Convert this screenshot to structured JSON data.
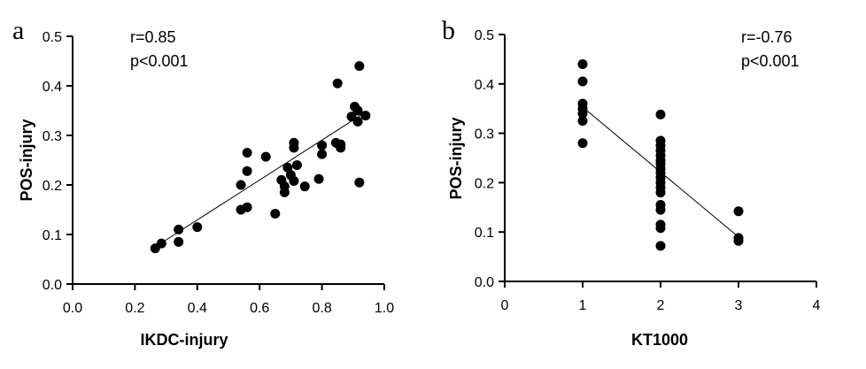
{
  "chart_data": [
    {
      "type": "scatter",
      "panel_label": "a",
      "xlabel": "IKDC-injury",
      "ylabel": "POS-injury",
      "xlim": [
        0.0,
        1.0
      ],
      "ylim": [
        0.0,
        0.5
      ],
      "xticks": [
        0.0,
        0.2,
        0.4,
        0.6,
        0.8,
        1.0
      ],
      "xtick_labels": [
        "0.0",
        "0.2",
        "0.4",
        "0.6",
        "0.8",
        "1.0"
      ],
      "yticks": [
        0.0,
        0.1,
        0.2,
        0.3,
        0.4,
        0.5
      ],
      "ytick_labels": [
        "0.0",
        "0.1",
        "0.2",
        "0.3",
        "0.4",
        "0.5"
      ],
      "annotations": [
        "r=0.85",
        "p<0.001"
      ],
      "annotation_position": "top-left",
      "grid": false,
      "points": [
        [
          0.265,
          0.072
        ],
        [
          0.285,
          0.082
        ],
        [
          0.34,
          0.085
        ],
        [
          0.34,
          0.11
        ],
        [
          0.4,
          0.115
        ],
        [
          0.54,
          0.15
        ],
        [
          0.56,
          0.155
        ],
        [
          0.54,
          0.2
        ],
        [
          0.56,
          0.228
        ],
        [
          0.56,
          0.265
        ],
        [
          0.62,
          0.257
        ],
        [
          0.65,
          0.142
        ],
        [
          0.67,
          0.21
        ],
        [
          0.68,
          0.185
        ],
        [
          0.68,
          0.197
        ],
        [
          0.69,
          0.235
        ],
        [
          0.7,
          0.22
        ],
        [
          0.71,
          0.208
        ],
        [
          0.71,
          0.275
        ],
        [
          0.71,
          0.285
        ],
        [
          0.72,
          0.24
        ],
        [
          0.745,
          0.197
        ],
        [
          0.79,
          0.212
        ],
        [
          0.8,
          0.262
        ],
        [
          0.8,
          0.28
        ],
        [
          0.845,
          0.285
        ],
        [
          0.85,
          0.405
        ],
        [
          0.86,
          0.275
        ],
        [
          0.86,
          0.282
        ],
        [
          0.895,
          0.338
        ],
        [
          0.905,
          0.358
        ],
        [
          0.915,
          0.328
        ],
        [
          0.915,
          0.35
        ],
        [
          0.92,
          0.44
        ],
        [
          0.92,
          0.205
        ],
        [
          0.94,
          0.34
        ]
      ],
      "fit_line": [
        [
          0.265,
          0.075
        ],
        [
          0.935,
          0.345
        ]
      ]
    },
    {
      "type": "scatter",
      "panel_label": "b",
      "xlabel": "KT1000",
      "ylabel": "POS-injury",
      "xlim": [
        0,
        4
      ],
      "ylim": [
        0.0,
        0.5
      ],
      "xticks": [
        0,
        1,
        2,
        3,
        4
      ],
      "xtick_labels": [
        "0",
        "1",
        "2",
        "3",
        "4"
      ],
      "yticks": [
        0.0,
        0.1,
        0.2,
        0.3,
        0.4,
        0.5
      ],
      "ytick_labels": [
        "0.0",
        "0.1",
        "0.2",
        "0.3",
        "0.4",
        "0.5"
      ],
      "annotations": [
        "r=-0.76",
        "p<0.001"
      ],
      "annotation_position": "top-right",
      "grid": false,
      "points": [
        [
          1,
          0.44
        ],
        [
          1,
          0.405
        ],
        [
          1,
          0.36
        ],
        [
          1,
          0.35
        ],
        [
          1,
          0.34
        ],
        [
          1,
          0.325
        ],
        [
          1,
          0.28
        ],
        [
          2,
          0.338
        ],
        [
          2,
          0.285
        ],
        [
          2,
          0.275
        ],
        [
          2,
          0.265
        ],
        [
          2,
          0.255
        ],
        [
          2,
          0.245
        ],
        [
          2,
          0.238
        ],
        [
          2,
          0.228
        ],
        [
          2,
          0.22
        ],
        [
          2,
          0.21
        ],
        [
          2,
          0.2
        ],
        [
          2,
          0.19
        ],
        [
          2,
          0.18
        ],
        [
          2,
          0.155
        ],
        [
          2,
          0.145
        ],
        [
          2,
          0.115
        ],
        [
          2,
          0.108
        ],
        [
          2,
          0.072
        ],
        [
          3,
          0.142
        ],
        [
          3,
          0.088
        ],
        [
          3,
          0.082
        ]
      ],
      "fit_line": [
        [
          1,
          0.353
        ],
        [
          3,
          0.09
        ]
      ]
    }
  ]
}
